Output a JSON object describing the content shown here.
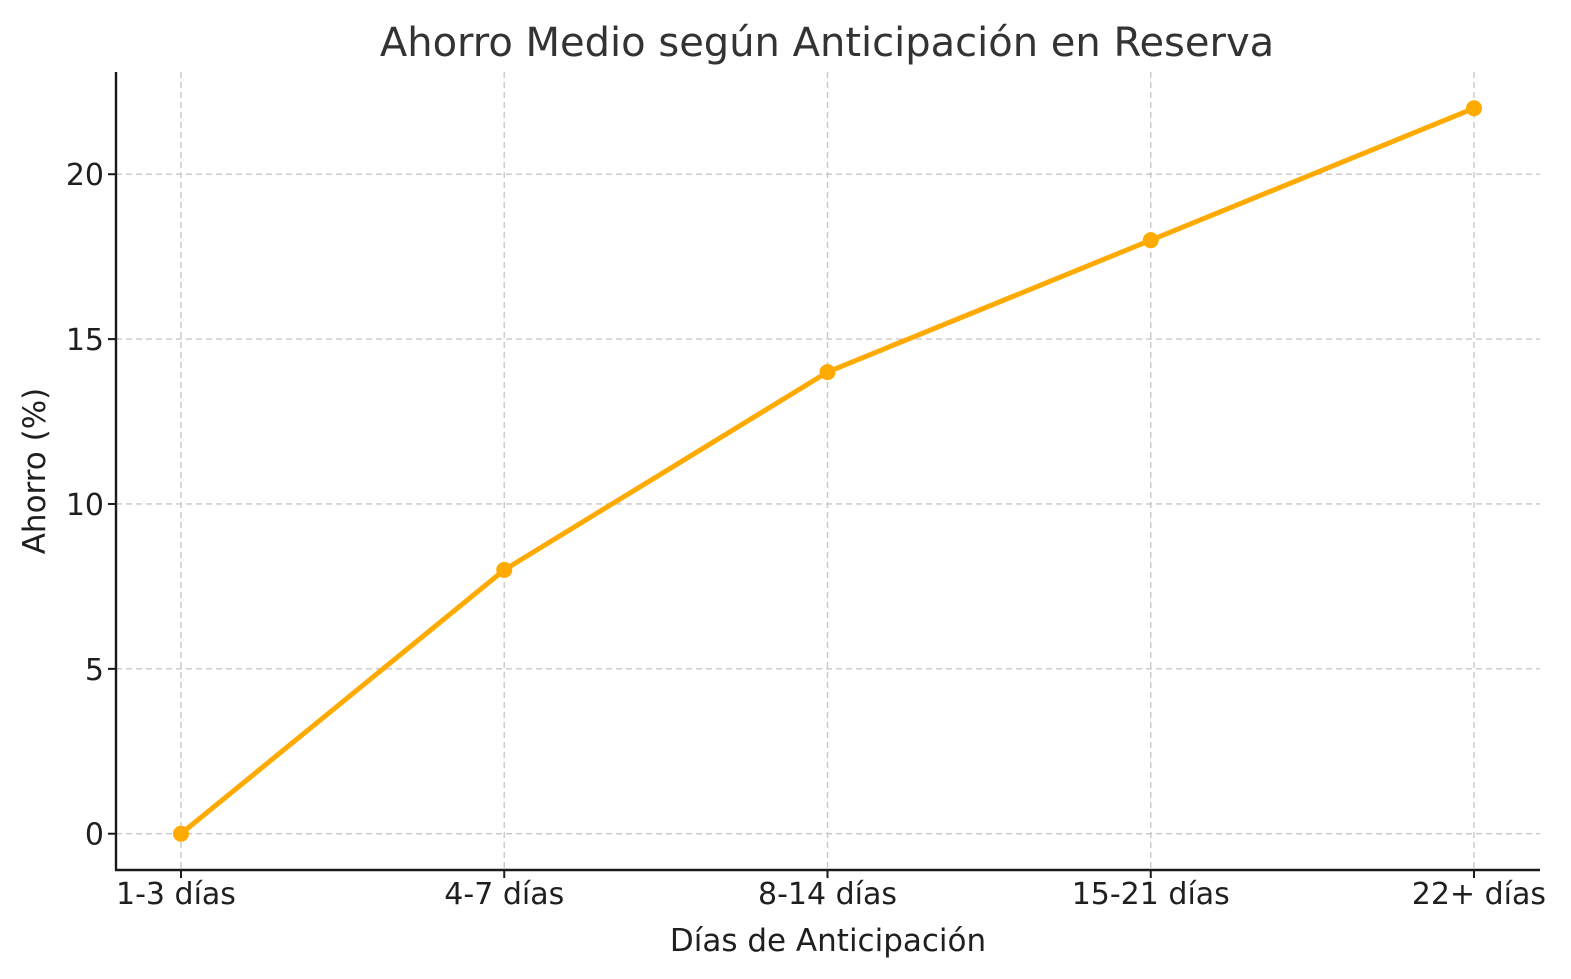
{
  "chart_data": {
    "type": "line",
    "title": "Ahorro Medio según Anticipación en Reserva",
    "xlabel": "Días de Anticipación",
    "ylabel": "Ahorro (%)",
    "categories": [
      "1-3 días",
      "4-7 días",
      "8-14 días",
      "15-21 días",
      "22+ días"
    ],
    "series": [
      {
        "values": [
          0,
          8,
          14,
          18,
          22
        ]
      }
    ],
    "ylim": [
      -1.1,
      23.1
    ],
    "yticks": [
      0,
      5,
      10,
      15,
      20
    ],
    "grid": true,
    "color": "#FFAA00"
  }
}
